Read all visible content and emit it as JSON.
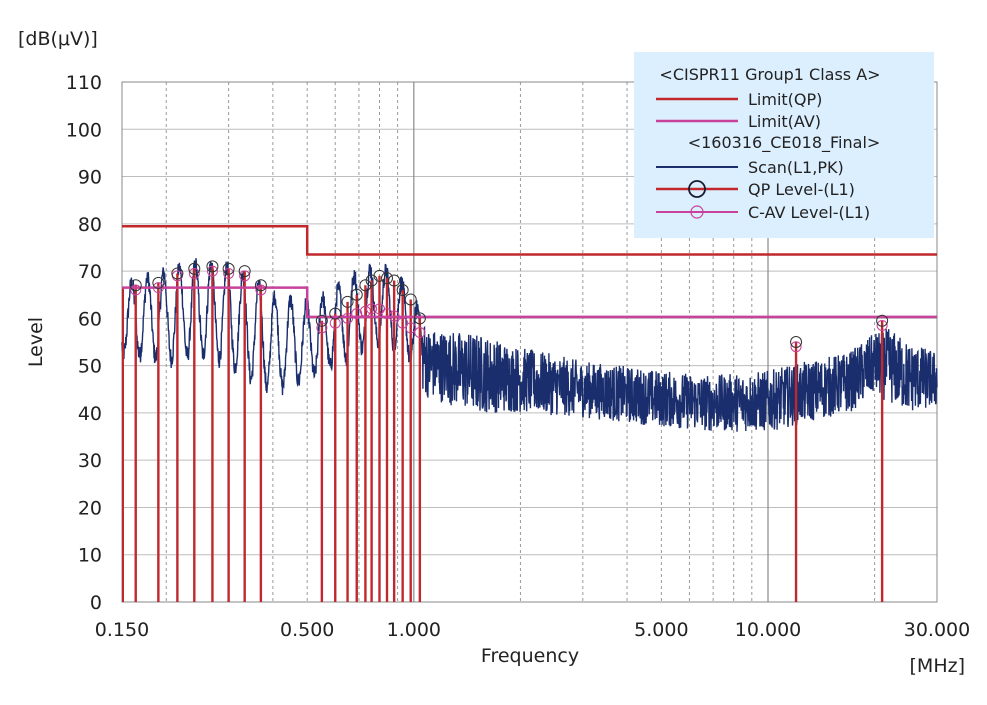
{
  "chart_data": {
    "type": "line",
    "title": "",
    "xlabel": "Frequency",
    "xunit": "[MHz]",
    "ylabel": "Level",
    "yunit": "[dB(μV)]",
    "xscale": "log",
    "xlim": [
      0.15,
      30
    ],
    "ylim": [
      0,
      110
    ],
    "yticks": [
      0,
      10,
      20,
      30,
      40,
      50,
      60,
      70,
      80,
      90,
      100,
      110
    ],
    "xtick_labels": [
      {
        "value": 0.15,
        "label": "0.150"
      },
      {
        "value": 0.5,
        "label": "0.500"
      },
      {
        "value": 1,
        "label": "1.000"
      },
      {
        "value": 5,
        "label": "5.000"
      },
      {
        "value": 10,
        "label": "10.000"
      },
      {
        "value": 30,
        "label": "30.000"
      }
    ],
    "grid": true,
    "legend_position": "top-right",
    "legend": {
      "group1_title": "<CISPR11 Group1 Class A>",
      "group2_title": "<160316_CE018_Final>",
      "entries": [
        {
          "label": "Limit(QP)",
          "color": "#c0282d",
          "marker": "line"
        },
        {
          "label": "Limit(AV)",
          "color": "#c8419b",
          "marker": "line"
        },
        {
          "label": "Scan(L1,PK)",
          "color": "#1a2e6e",
          "marker": "line"
        },
        {
          "label": "QP Level-(L1)",
          "color": "#c0282d",
          "marker": "circle"
        },
        {
          "label": "C-AV Level-(L1)",
          "color": "#c8419b",
          "marker": "circle-small"
        }
      ]
    },
    "series": [
      {
        "name": "Limit(QP)",
        "color": "#c0282d",
        "points": [
          [
            0.15,
            79.5
          ],
          [
            0.5,
            79.5
          ],
          [
            0.5,
            73.5
          ],
          [
            30,
            73.5
          ]
        ]
      },
      {
        "name": "Limit(AV)",
        "color": "#c8419b",
        "points": [
          [
            0.15,
            66.5
          ],
          [
            0.5,
            66.5
          ],
          [
            0.5,
            60.3
          ],
          [
            30,
            60.3
          ]
        ]
      },
      {
        "name": "Scan(L1,PK)",
        "color": "#1a2e6e",
        "envelope": [
          [
            0.15,
            48,
            67
          ],
          [
            0.2,
            45,
            70
          ],
          [
            0.25,
            46,
            72
          ],
          [
            0.3,
            44,
            71
          ],
          [
            0.35,
            40,
            68
          ],
          [
            0.4,
            38,
            65
          ],
          [
            0.5,
            42,
            63
          ],
          [
            0.6,
            45,
            66
          ],
          [
            0.7,
            48,
            70
          ],
          [
            0.8,
            50,
            71
          ],
          [
            0.9,
            49,
            69
          ],
          [
            1.0,
            46,
            64
          ],
          [
            1.1,
            43,
            58
          ],
          [
            1.5,
            40,
            57
          ],
          [
            2.0,
            40,
            54
          ],
          [
            3.0,
            39,
            51
          ],
          [
            5.0,
            37,
            49
          ],
          [
            7.0,
            36,
            48
          ],
          [
            10.0,
            36,
            49
          ],
          [
            13.0,
            38,
            51
          ],
          [
            17.0,
            40,
            53
          ],
          [
            20.0,
            44,
            57
          ],
          [
            22.0,
            42,
            58
          ],
          [
            25.0,
            40,
            55
          ],
          [
            30.0,
            41,
            53
          ]
        ]
      },
      {
        "name": "QP Level-(L1)",
        "color": "#c0282d",
        "points": [
          [
            0.164,
            67
          ],
          [
            0.19,
            67.5
          ],
          [
            0.215,
            69.5
          ],
          [
            0.24,
            70.5
          ],
          [
            0.27,
            71
          ],
          [
            0.3,
            70.5
          ],
          [
            0.333,
            70
          ],
          [
            0.37,
            67
          ],
          [
            0.55,
            59.5
          ],
          [
            0.6,
            61
          ],
          [
            0.65,
            63.5
          ],
          [
            0.69,
            65
          ],
          [
            0.73,
            67
          ],
          [
            0.76,
            68
          ],
          [
            0.8,
            69
          ],
          [
            0.84,
            68.5
          ],
          [
            0.88,
            68
          ],
          [
            0.93,
            66
          ],
          [
            0.98,
            64
          ],
          [
            1.04,
            60
          ],
          [
            12.0,
            55
          ],
          [
            21.0,
            59.5
          ]
        ]
      },
      {
        "name": "C-AV Level-(L1)",
        "color": "#c8419b",
        "points": [
          [
            0.164,
            66
          ],
          [
            0.19,
            66.5
          ],
          [
            0.215,
            69
          ],
          [
            0.24,
            69.5
          ],
          [
            0.27,
            70
          ],
          [
            0.3,
            69.5
          ],
          [
            0.333,
            69
          ],
          [
            0.37,
            66
          ],
          [
            0.55,
            58
          ],
          [
            0.6,
            59
          ],
          [
            0.65,
            60
          ],
          [
            0.69,
            61
          ],
          [
            0.73,
            61.5
          ],
          [
            0.76,
            62
          ],
          [
            0.8,
            62
          ],
          [
            0.84,
            61
          ],
          [
            0.88,
            60.5
          ],
          [
            0.93,
            59
          ],
          [
            0.98,
            58
          ],
          [
            1.04,
            57
          ],
          [
            12.0,
            54
          ],
          [
            21.0,
            58.5
          ]
        ]
      }
    ]
  }
}
